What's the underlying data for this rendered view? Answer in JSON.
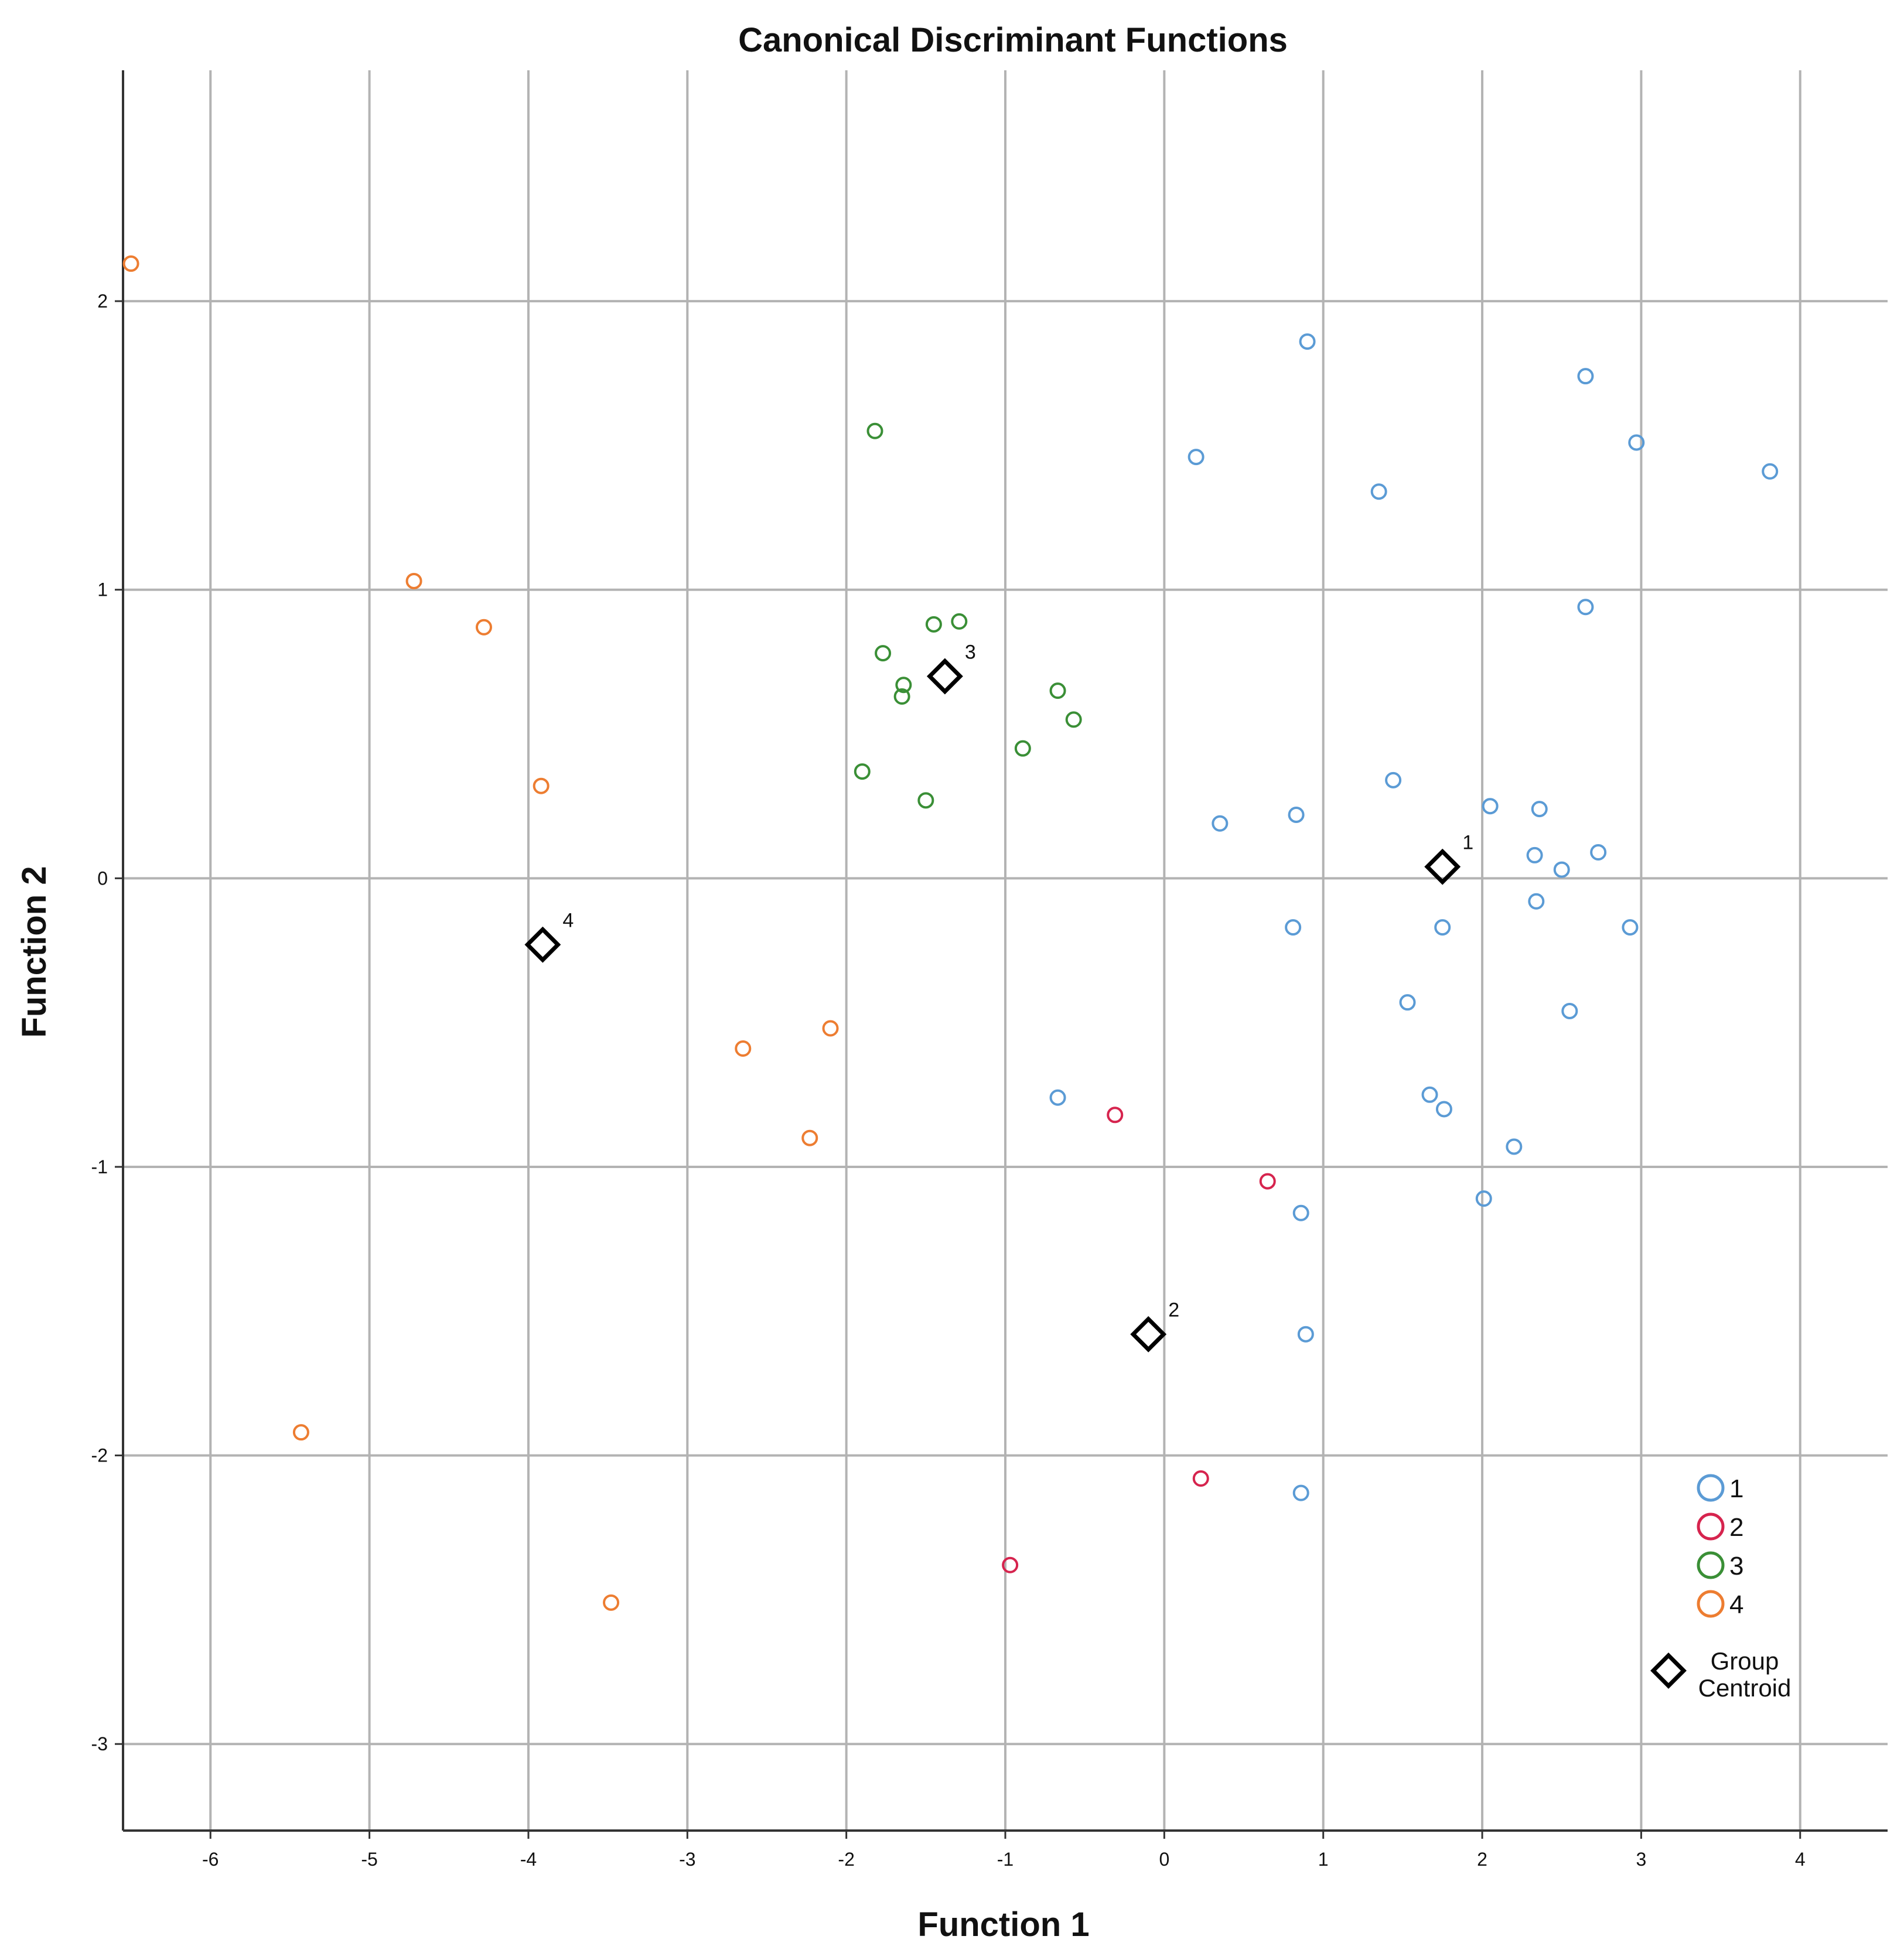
{
  "chart_data": {
    "type": "scatter",
    "title": "Canonical Discriminant Functions",
    "xlabel": "Function 1",
    "ylabel": "Function 2",
    "xlim": [
      -6.55,
      4.55
    ],
    "ylim": [
      -3.3,
      2.8
    ],
    "xticks": [
      -6,
      -5,
      -4,
      -3,
      -2,
      -1,
      0,
      1,
      2,
      3,
      4
    ],
    "yticks": [
      -3,
      -2,
      -1,
      0,
      1,
      2
    ],
    "xtick_labels": [
      "-6",
      "-5",
      "-4",
      "-3",
      "-2",
      "-1",
      "0",
      "1",
      "2",
      "3",
      "4"
    ],
    "ytick_labels": [
      "-3",
      "-2",
      "-1",
      "0",
      "1",
      "2"
    ],
    "grid": true,
    "legend_position": "bottom-right",
    "series": [
      {
        "name": "1",
        "color": "#5b9bd5",
        "points": [
          [
            0.9,
            1.86
          ],
          [
            0.2,
            1.46
          ],
          [
            1.35,
            1.34
          ],
          [
            2.65,
            1.74
          ],
          [
            2.97,
            1.51
          ],
          [
            3.81,
            1.41
          ],
          [
            2.65,
            0.94
          ],
          [
            1.44,
            0.34
          ],
          [
            2.05,
            0.25
          ],
          [
            2.36,
            0.24
          ],
          [
            0.83,
            0.22
          ],
          [
            0.35,
            0.19
          ],
          [
            2.33,
            0.08
          ],
          [
            2.73,
            0.09
          ],
          [
            2.5,
            0.03
          ],
          [
            2.34,
            -0.08
          ],
          [
            0.81,
            -0.17
          ],
          [
            1.75,
            -0.17
          ],
          [
            2.93,
            -0.17
          ],
          [
            1.53,
            -0.43
          ],
          [
            2.55,
            -0.46
          ],
          [
            -0.67,
            -0.76
          ],
          [
            1.67,
            -0.75
          ],
          [
            1.76,
            -0.8
          ],
          [
            2.2,
            -0.93
          ],
          [
            2.01,
            -1.11
          ],
          [
            0.86,
            -1.16
          ],
          [
            0.89,
            -1.58
          ],
          [
            0.86,
            -2.13
          ]
        ]
      },
      {
        "name": "2",
        "color": "#d6244e",
        "points": [
          [
            -0.31,
            -0.82
          ],
          [
            0.65,
            -1.05
          ],
          [
            0.23,
            -2.08
          ],
          [
            -0.97,
            -2.38
          ]
        ]
      },
      {
        "name": "3",
        "color": "#3a8f36",
        "points": [
          [
            -1.82,
            1.55
          ],
          [
            -1.45,
            0.88
          ],
          [
            -1.29,
            0.89
          ],
          [
            -1.77,
            0.78
          ],
          [
            -1.64,
            0.67
          ],
          [
            -1.65,
            0.63
          ],
          [
            -0.67,
            0.65
          ],
          [
            -0.57,
            0.55
          ],
          [
            -0.89,
            0.45
          ],
          [
            -1.9,
            0.37
          ],
          [
            -1.5,
            0.27
          ]
        ]
      },
      {
        "name": "4",
        "color": "#ed7d31",
        "points": [
          [
            -6.5,
            2.13
          ],
          [
            -4.72,
            1.03
          ],
          [
            -4.28,
            0.87
          ],
          [
            -3.92,
            0.32
          ],
          [
            -2.1,
            -0.52
          ],
          [
            -2.65,
            -0.59
          ],
          [
            -2.23,
            -0.9
          ],
          [
            -5.43,
            -1.92
          ],
          [
            -3.48,
            -2.51
          ]
        ]
      }
    ],
    "centroids": [
      {
        "group": "1",
        "label": "1",
        "x": 1.75,
        "y": 0.04
      },
      {
        "group": "2",
        "label": "2",
        "x": -0.1,
        "y": -1.58
      },
      {
        "group": "3",
        "label": "3",
        "x": -1.38,
        "y": 0.7
      },
      {
        "group": "4",
        "label": "4",
        "x": -3.91,
        "y": -0.23
      }
    ],
    "legend": {
      "entries": [
        {
          "label": "1",
          "color": "#5b9bd5"
        },
        {
          "label": "2",
          "color": "#d6244e"
        },
        {
          "label": "3",
          "color": "#3a8f36"
        },
        {
          "label": "4",
          "color": "#ed7d31"
        }
      ],
      "centroid_label_line1": "Group",
      "centroid_label_line2": "Centroid"
    }
  }
}
